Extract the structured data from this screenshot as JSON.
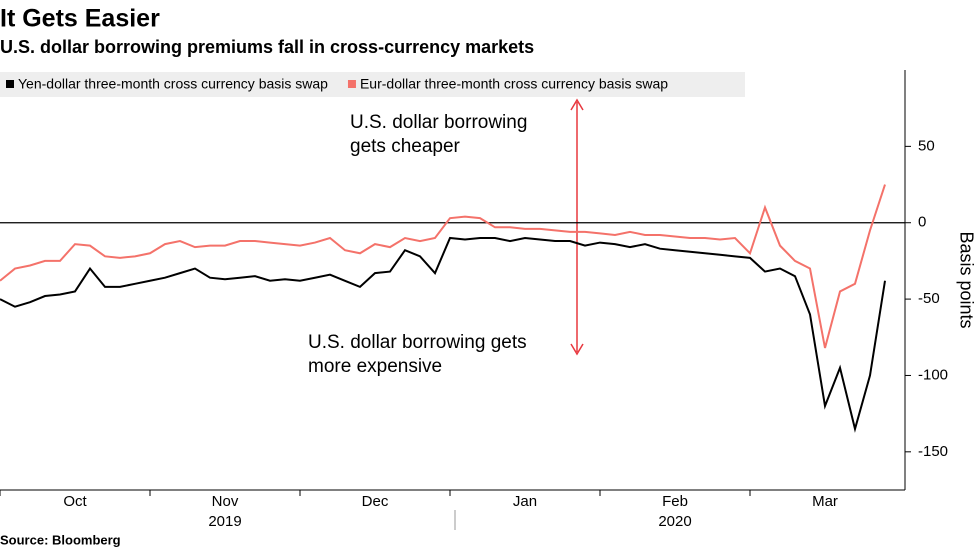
{
  "chart_data": {
    "type": "line",
    "title": "It Gets Easier",
    "subtitle": "U.S. dollar borrowing premiums fall in cross-currency markets",
    "source": "Source: Bloomberg",
    "y_axis_label": "Basis points",
    "categories": [
      null,
      null,
      null,
      null,
      null,
      "Oct",
      null,
      null,
      null,
      null,
      null,
      null,
      null,
      null,
      null,
      "Nov",
      null,
      null,
      null,
      null,
      null,
      null,
      null,
      null,
      null,
      "Dec",
      null,
      null,
      null,
      null,
      null,
      null,
      null,
      null,
      null,
      "Jan",
      null,
      null,
      null,
      null,
      null,
      null,
      null,
      null,
      null,
      "Feb",
      null,
      null,
      null,
      null,
      null,
      null,
      null,
      null,
      null,
      "Mar",
      null,
      null,
      null,
      null
    ],
    "years": [
      "2019",
      "2020"
    ],
    "series": [
      {
        "name": "Yen-dollar three-month cross currency basis swap",
        "color": "#000000",
        "values": [
          -50,
          -55,
          -52,
          -48,
          -47,
          -45,
          -30,
          -42,
          -42,
          -40,
          -38,
          -36,
          -33,
          -30,
          -36,
          -37,
          -36,
          -35,
          -38,
          -37,
          -38,
          -36,
          -34,
          -38,
          -42,
          -33,
          -32,
          -18,
          -22,
          -33,
          -10,
          -11,
          -10,
          -10,
          -12,
          -10,
          -11,
          -12,
          -12,
          -15,
          -13,
          -14,
          -16,
          -14,
          -17,
          -18,
          -19,
          -20,
          -21,
          -22,
          -23,
          -32,
          -30,
          -35,
          -60,
          -120,
          -95,
          -135,
          -100,
          -38
        ]
      },
      {
        "name": "Eur-dollar three-month cross currency basis swap",
        "color": "#f4726a",
        "values": [
          -38,
          -30,
          -28,
          -25,
          -25,
          -14,
          -15,
          -22,
          -23,
          -22,
          -20,
          -14,
          -12,
          -16,
          -15,
          -15,
          -12,
          -12,
          -13,
          -14,
          -15,
          -13,
          -10,
          -18,
          -20,
          -14,
          -16,
          -10,
          -12,
          -10,
          3,
          4,
          3,
          -3,
          -3,
          -4,
          -4,
          -5,
          -6,
          -6,
          -7,
          -8,
          -6,
          -8,
          -8,
          -9,
          -10,
          -10,
          -11,
          -10,
          -20,
          10,
          -15,
          -25,
          -30,
          -82,
          -45,
          -40,
          -5,
          25
        ]
      }
    ],
    "ylim": [
      -175,
      100
    ],
    "yticks": [
      -150,
      -100,
      -50,
      0,
      50
    ],
    "annotations": [
      {
        "lines": [
          "U.S. dollar borrowing",
          "gets cheaper"
        ]
      },
      {
        "lines": [
          "U.S. dollar borrowing gets",
          "more expensive"
        ]
      }
    ]
  }
}
